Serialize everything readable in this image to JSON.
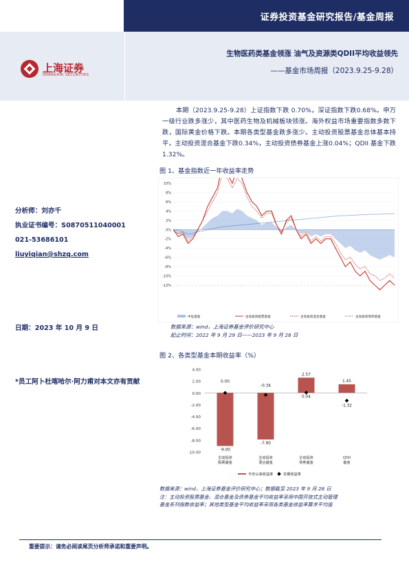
{
  "header": {
    "top_title": "证券投资基金研究报告/基金周报",
    "logo_text": "上海证券",
    "logo_sub": "SHANGHAI SECURITIES",
    "report_title": "生物医药类基金领涨 油气及资源类QDII平均收益领先",
    "report_subtitle": "——基金市场周报（2023.9.25-9.28）"
  },
  "summary": "本期（2023.9.25-9.28）上证指数下跌 0.70%，深证指数下跌0.68%。申万一级行业跌多涨少，其中医药生物及机械板块领涨。海外权益市场重要指数多数下跌，国际黄金价格下跌。本期各类型基金跌多涨少。主动投资股票基金总体基本持平，主动投资混合基金下跌0.34%，主动投资债券基金上涨0.04%；QDII 基金下跌1.32%。",
  "sidebar": {
    "analyst": "分析师：刘亦千",
    "license": "执业证书编号：S0870511040001",
    "phone": "021-53686101",
    "email": "liuyiqian@shzq.com",
    "date": "日期：2023 年 10 月 9 日",
    "note": "*员工阿卜杜喀哈尔·阿力甫对本文亦有贡献"
  },
  "figure1": {
    "title": "图 1、基金指数近一年收益率走势",
    "source_line1": "数据来源：wind，上海证券基金评价研究中心",
    "source_line2": "起止时间：2022 年 9 月 29 日——2023 年 9 月 28 日",
    "colors": {
      "stock": "#c0392b",
      "hybrid": "#c0392b",
      "bond": "#3a6fb5",
      "index": "#aabfe6"
    }
  },
  "figure2": {
    "title": "图 2、各类型基金本期收益率（%）",
    "source_line1": "数据来源：wind，上海证券基金评价研究中心；数据截至 2023 年 9 月 28 日",
    "source_line2": "注：主动投资股票基金、混合基金及债券基金平均收益率采用中国开放式主动管理",
    "source_line3": "基金系列指数收益率；其他类型基金平均收益率采用各类基金收益率算术平均值",
    "colors": {
      "bar": "#b85450",
      "marker": "#000000"
    }
  },
  "footer": {
    "note": "重要提示：请务必阅读尾页分析师承诺和重要声明。"
  },
  "chart_data": [
    {
      "type": "line",
      "ylim": [
        -12,
        10
      ],
      "y_ticks": [
        "10%",
        "8%",
        "6%",
        "4%",
        "2%",
        "0%",
        "-2%",
        "-4%",
        "-6%",
        "-8%",
        "-10%",
        "-12%"
      ],
      "legend": [
        "中证基金",
        "主动投资股票基金",
        "主动投资混合基金",
        "主动投资债券基金"
      ],
      "x_start": "2022-09-29",
      "x_end": "2023-09-28",
      "series": [
        {
          "name": "主动投资股票基金",
          "values": [
            0,
            -1.5,
            -1,
            -3,
            -2,
            0,
            2,
            5,
            7,
            9,
            14,
            12,
            10,
            13,
            11,
            8,
            6,
            5,
            3,
            4,
            4,
            1,
            -1,
            2,
            3,
            0,
            -2,
            -1,
            -3,
            -2,
            -3,
            -2,
            -2,
            -4,
            -6,
            -8,
            -7,
            -9,
            -10,
            -9,
            -11,
            -12,
            -13,
            -12,
            -11,
            -12
          ]
        },
        {
          "name": "主动投资混合基金",
          "values": [
            0,
            -1,
            -0.5,
            -2.5,
            -1.5,
            0,
            2,
            4,
            6,
            8,
            12,
            11,
            9,
            11,
            10,
            7,
            5,
            4,
            2.5,
            3.5,
            3.5,
            1,
            -0.5,
            1.5,
            2.5,
            0,
            -1.5,
            -0.5,
            -2.5,
            -1.5,
            -2.5,
            -1.5,
            -1.5,
            -3,
            -5,
            -6.5,
            -6,
            -7.5,
            -8.5,
            -8,
            -9.5,
            -10,
            -11,
            -10.5,
            -9.5,
            -10.5
          ]
        },
        {
          "name": "主动投资债券基金",
          "values": [
            0,
            0,
            -0.5,
            -1,
            -0.8,
            -0.5,
            -0.3,
            0,
            0.2,
            0.4,
            0.6,
            0.7,
            0.8,
            0.9,
            1,
            1.1,
            1.2,
            1.3,
            1.4,
            1.5,
            1.6,
            1.7,
            1.8,
            1.9,
            2,
            2.1,
            2.2,
            2.3,
            2.4,
            2.5,
            2.6,
            2.7,
            2.8,
            2.9,
            3,
            3,
            3.1,
            3.1,
            3.2,
            3.2,
            3.3,
            3.3,
            3.3,
            3.4,
            3.4,
            3.4
          ]
        },
        {
          "name": "中证基金",
          "values": [
            0,
            -1,
            -1,
            -2,
            -1.5,
            -0.5,
            0.5,
            1.5,
            2.5,
            3,
            4,
            4,
            3.5,
            4.5,
            4,
            3,
            2.5,
            2,
            1,
            1.5,
            1.5,
            0.5,
            -0.5,
            0.5,
            1,
            0,
            -1,
            -0.5,
            -1.5,
            -1,
            -1.5,
            -1,
            -1,
            -2,
            -3,
            -4,
            -3.5,
            -4.5,
            -5,
            -4.5,
            -5.5,
            -6,
            -6.5,
            -6,
            -5.5,
            -6
          ]
        }
      ]
    },
    {
      "type": "bar",
      "categories": [
        "主动投资股票基金",
        "主动投资混合基金",
        "主动投资债券基金",
        "QDII基金"
      ],
      "ylim": [
        -10,
        4
      ],
      "y_ticks": [
        "4.00",
        "2.00",
        "0.00",
        "-2.00",
        "-4.00",
        "-6.00",
        "-8.00",
        "-10.00"
      ],
      "series": [
        {
          "name": "今年以来收益率",
          "values": [
            -9.0,
            -7.9,
            2.57,
            1.45
          ]
        },
        {
          "name": "本期收益率",
          "values": [
            0.0,
            -0.34,
            0.04,
            -1.32
          ]
        }
      ]
    }
  ]
}
